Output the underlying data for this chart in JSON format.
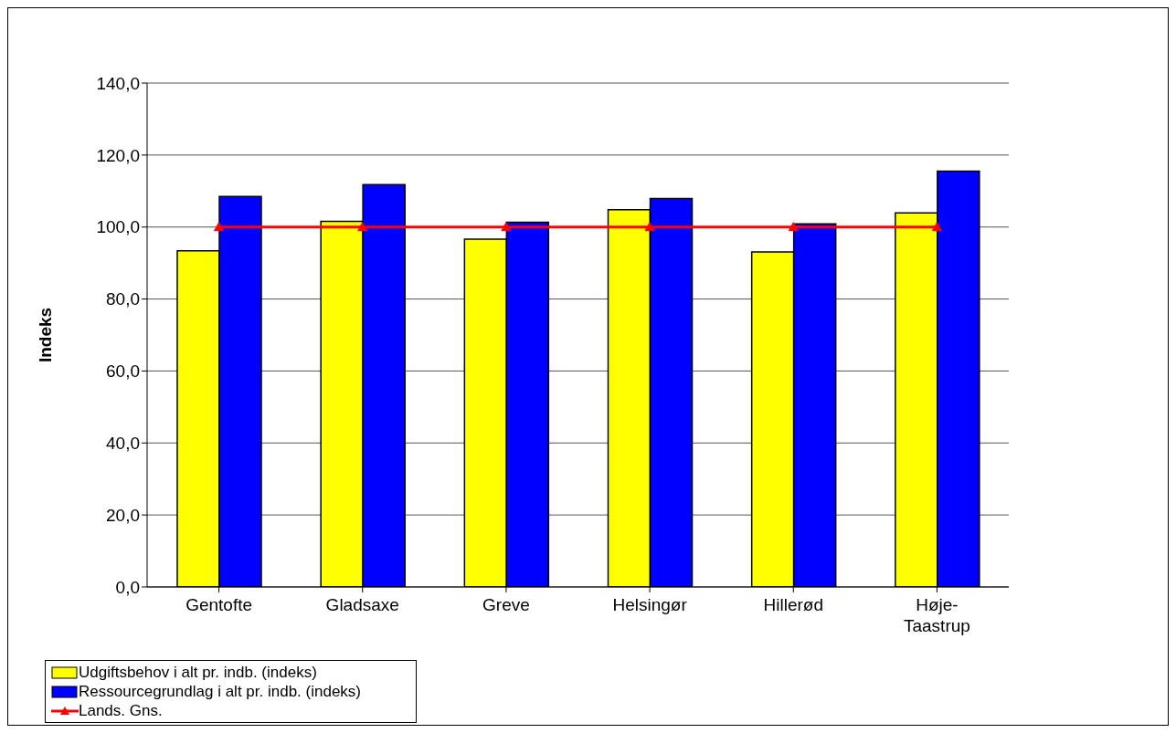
{
  "chart_data": {
    "type": "bar",
    "ylabel": "Indeks",
    "categories": [
      "Gentofte",
      "Gladsaxe",
      "Greve",
      "Helsingør",
      "Hillerød",
      "Høje-Taastrup"
    ],
    "series": [
      {
        "name": "Udgiftsbehov i alt pr. indb. (indeks)",
        "color": "#ffff00",
        "values": [
          93.4,
          101.6,
          96.6,
          104.8,
          93.1,
          103.9
        ]
      },
      {
        "name": "Ressourcegrundlag i alt pr. indb. (indeks)",
        "color": "#0000ff",
        "values": [
          108.5,
          111.8,
          101.3,
          107.9,
          100.9,
          115.5
        ]
      },
      {
        "name": "Lands. Gns.",
        "type": "line",
        "color": "#ff0000",
        "marker": "triangle",
        "values": [
          100,
          100,
          100,
          100,
          100,
          100
        ]
      }
    ],
    "ylim": [
      0,
      140
    ],
    "yticks": [
      {
        "value": 0,
        "label": "0,0"
      },
      {
        "value": 20,
        "label": "20,0"
      },
      {
        "value": 40,
        "label": "40,0"
      },
      {
        "value": 60,
        "label": "60,0"
      },
      {
        "value": 80,
        "label": "80,0"
      },
      {
        "value": 100,
        "label": "100,0"
      },
      {
        "value": 120,
        "label": "120,0"
      },
      {
        "value": 140,
        "label": "140,0"
      }
    ],
    "grid": "y",
    "legend": "bottom"
  }
}
